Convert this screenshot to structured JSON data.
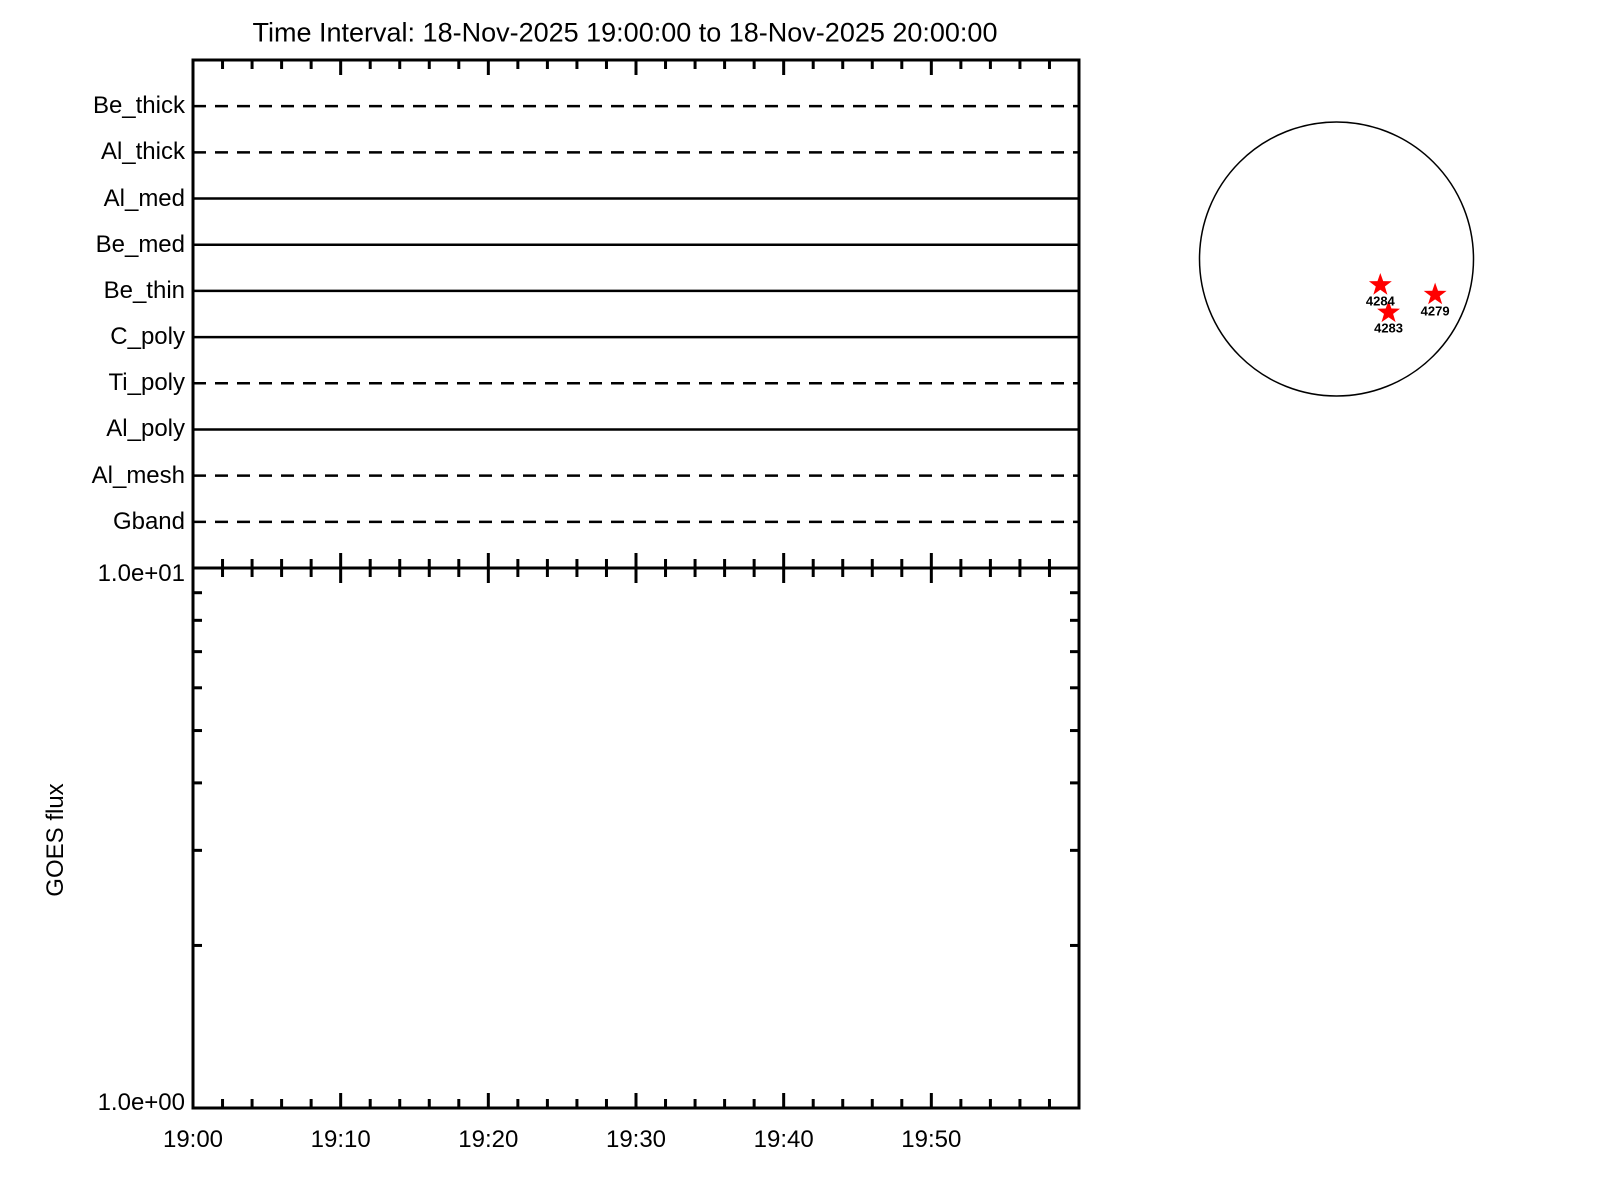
{
  "title": "Time Interval: 18-Nov-2025 19:00:00 to 18-Nov-2025 20:00:00",
  "colors": {
    "foreground": "#000000",
    "background": "#ffffff",
    "marker_red": "#ff0000"
  },
  "chart_data": [
    {
      "type": "line",
      "panel": "xrt-filter-timeline",
      "description": "Horizontal availability lines for each XRT filter over the time interval",
      "x_axis": {
        "start": "19:00",
        "end": "20:00",
        "range_minutes": 60,
        "major_tick_minutes": 10,
        "minor_tick_minutes": 2,
        "labels_shown": false
      },
      "grid": false,
      "filters": [
        {
          "label": "Be_thick",
          "linestyle": "dashed"
        },
        {
          "label": "Al_thick",
          "linestyle": "dashed"
        },
        {
          "label": "Al_med",
          "linestyle": "solid"
        },
        {
          "label": "Be_med",
          "linestyle": "solid"
        },
        {
          "label": "Be_thin",
          "linestyle": "solid"
        },
        {
          "label": "C_poly",
          "linestyle": "solid"
        },
        {
          "label": "Ti_poly",
          "linestyle": "dashed"
        },
        {
          "label": "Al_poly",
          "linestyle": "solid"
        },
        {
          "label": "Al_mesh",
          "linestyle": "dashed"
        },
        {
          "label": "Gband",
          "linestyle": "dashed"
        }
      ]
    },
    {
      "type": "line",
      "panel": "goes-flux",
      "ylabel": "GOES flux",
      "yscale": "log",
      "ylim": [
        1,
        10
      ],
      "ytick_labels": [
        {
          "value": 10,
          "label": "1.0e+01"
        },
        {
          "value": 1,
          "label": "1.0e+00"
        }
      ],
      "y_minor_ticks": [
        2,
        3,
        4,
        5,
        6,
        7,
        8,
        9
      ],
      "x_axis": {
        "range_minutes": 60,
        "major_tick_minutes": 10,
        "minor_tick_minutes": 2,
        "major_labels": [
          "19:00",
          "19:10",
          "19:20",
          "19:30",
          "19:40",
          "19:50"
        ]
      },
      "series": []
    },
    {
      "type": "scatter",
      "panel": "solar-disk",
      "description": "Solar disk with flagged active regions",
      "marker": "star",
      "marker_color": "#ff0000",
      "points": [
        {
          "label": "4284",
          "x_r": 0.32,
          "y_r": 0.19
        },
        {
          "label": "4283",
          "x_r": 0.38,
          "y_r": 0.39
        },
        {
          "label": "4279",
          "x_r": 0.72,
          "y_r": 0.26
        }
      ]
    }
  ]
}
